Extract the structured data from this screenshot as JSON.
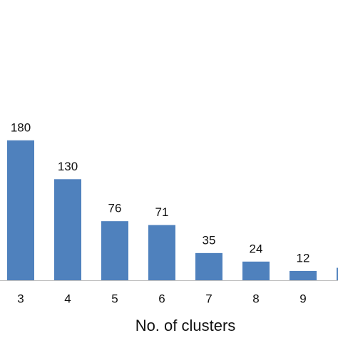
{
  "chart_data": {
    "type": "bar",
    "x_label": "No. of clusters",
    "categories": [
      "3",
      "4",
      "5",
      "6",
      "7",
      "8",
      "9",
      null
    ],
    "values": [
      180,
      130,
      76,
      71,
      35,
      24,
      12,
      16
    ],
    "value_labels": [
      "180",
      "130",
      "76",
      "71",
      "35",
      "24",
      "12",
      null
    ],
    "color": "#4f81bd"
  }
}
